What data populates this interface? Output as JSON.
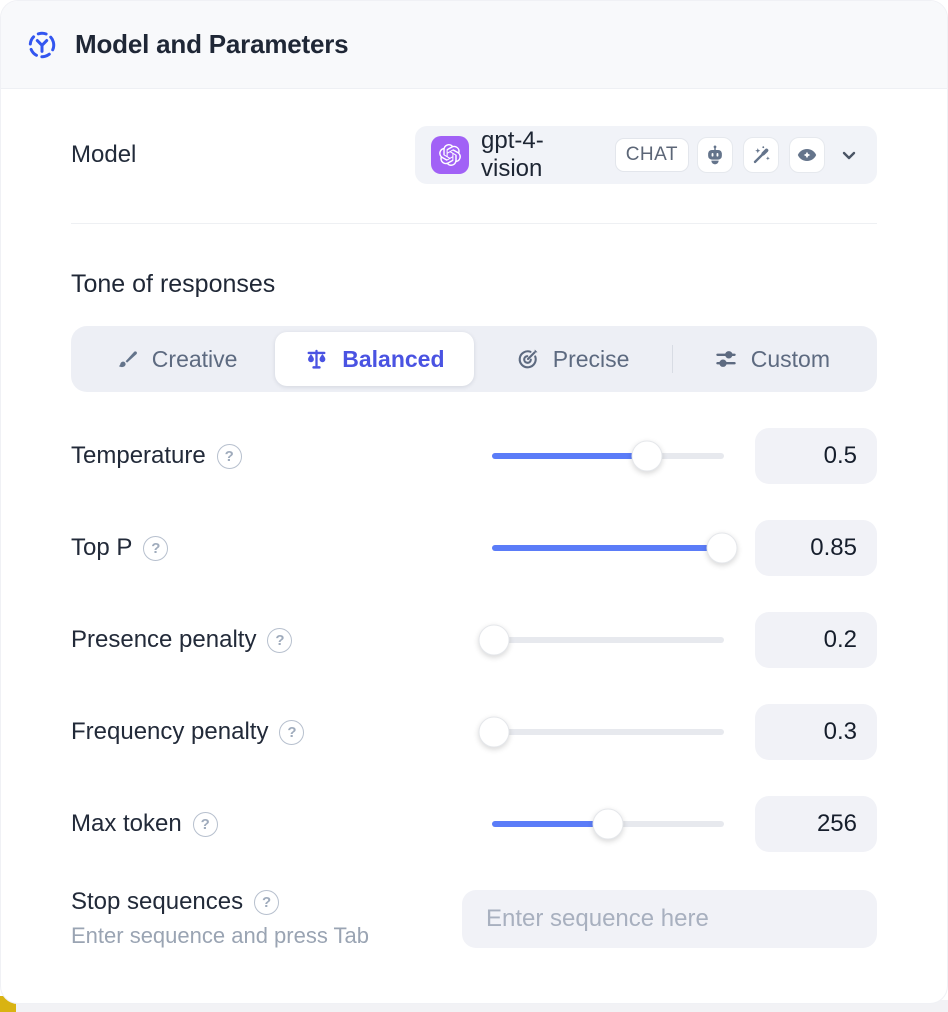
{
  "header": {
    "title": "Model and Parameters",
    "icon": "model-network-icon"
  },
  "model_row": {
    "label": "Model",
    "selected_model": "gpt-4-vision",
    "provider_icon": "openai-logo",
    "type_badge": "CHAT",
    "capability_icons": [
      "robot-icon",
      "magic-wand-icon",
      "vision-eye-icon"
    ],
    "dropdown_icon": "chevron-down-icon"
  },
  "tone": {
    "heading": "Tone of responses",
    "options": [
      {
        "label": "Creative",
        "icon": "paintbrush-icon",
        "selected": false
      },
      {
        "label": "Balanced",
        "icon": "balance-scale-icon",
        "selected": true
      },
      {
        "label": "Precise",
        "icon": "target-arrow-icon",
        "selected": false
      },
      {
        "label": "Custom",
        "icon": "sliders-icon",
        "selected": false
      }
    ]
  },
  "parameters": [
    {
      "label": "Temperature",
      "value": "0.5",
      "percent": 67
    },
    {
      "label": "Top P",
      "value": "0.85",
      "percent": 99
    },
    {
      "label": "Presence penalty",
      "value": "0.2",
      "percent": 1
    },
    {
      "label": "Frequency penalty",
      "value": "0.3",
      "percent": 1
    },
    {
      "label": "Max token",
      "value": "256",
      "percent": 50
    }
  ],
  "stop_sequences": {
    "label": "Stop sequences",
    "hint": "Enter sequence and press Tab",
    "placeholder": "Enter sequence here",
    "value": ""
  },
  "icons": {
    "help_glyph": "?"
  },
  "colors": {
    "accent_indigo": "#4a53e2",
    "slider_blue": "#5b7cf8",
    "openai_purple": "#a161f6",
    "header_icon_blue": "#3356f0",
    "header_bg": "#f8f9fb",
    "control_bg": "#f1f2f7",
    "segmented_bg": "#edeff5",
    "text_dark": "#1f2736",
    "text_slate": "#5d6a80",
    "corner_yellow": "#d9b312"
  }
}
